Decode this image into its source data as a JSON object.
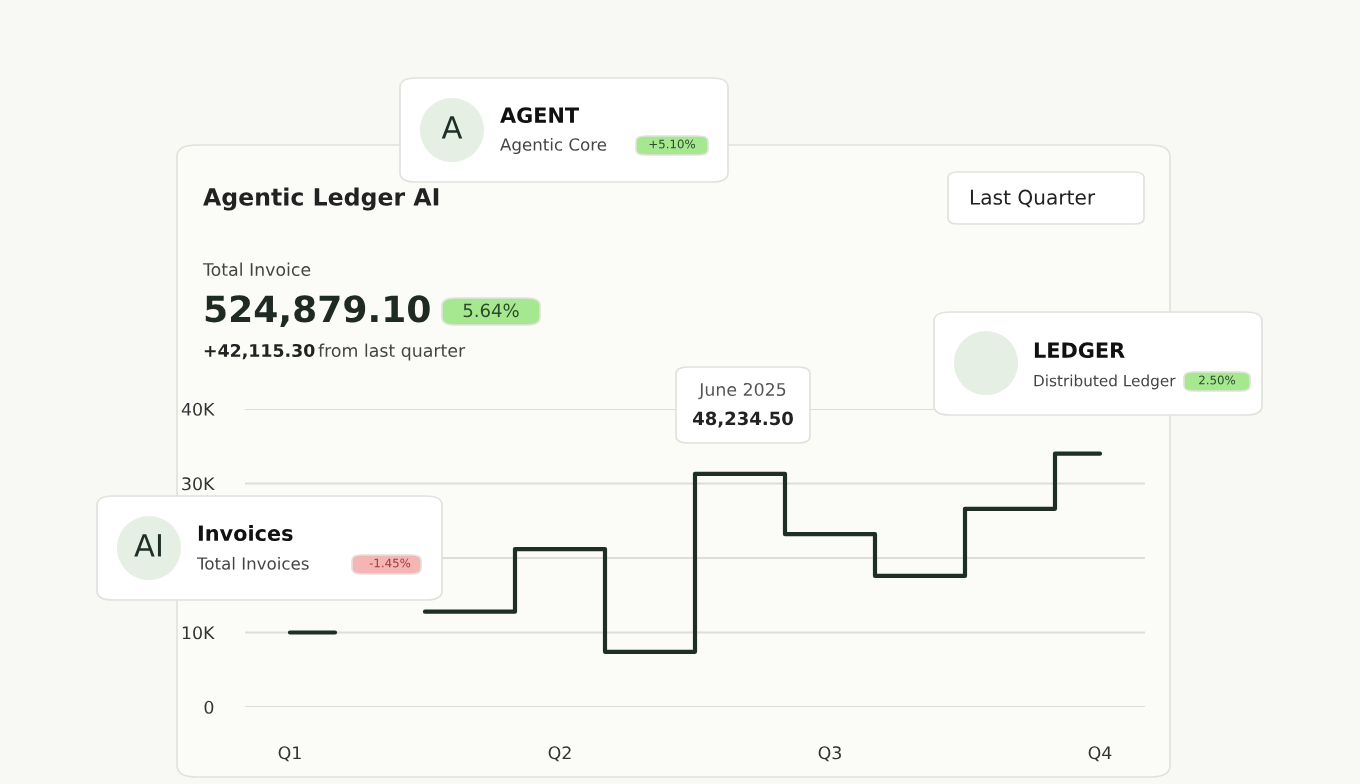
{
  "chart_data": {
    "type": "step",
    "title": "Agentic Ledger AI",
    "categories": [
      "Q1",
      null,
      null,
      "Q2",
      null,
      null,
      "Q3",
      null,
      null,
      "Q4"
    ],
    "series": [
      {
        "color": "#1e2f27",
        "values": [
          10000,
          null,
          12800,
          21200,
          7400,
          31300,
          23200,
          17600,
          26600,
          34000
        ]
      }
    ],
    "ylim": [
      0,
      40000
    ],
    "yticks": [
      {
        "value": 0,
        "label": "0"
      },
      {
        "value": 10000,
        "label": "10K"
      },
      {
        "value": 20000,
        "label": null
      },
      {
        "value": 30000,
        "label": "30K"
      },
      {
        "value": 40000,
        "label": "40K"
      }
    ],
    "grid": "y",
    "annotations": [
      "Total Invoice",
      "524,879.10",
      "5.64%",
      "+42,115.30",
      "from last quarter",
      "Last Quarter",
      "June 2025",
      "48,234.50",
      "A",
      "AGENT",
      "Agentic Core",
      "+5.10%",
      "LEDGER",
      "Distributed Ledger",
      "2.50%",
      "AI",
      "Invoices",
      "Total Invoices",
      "-1.45%"
    ]
  }
}
